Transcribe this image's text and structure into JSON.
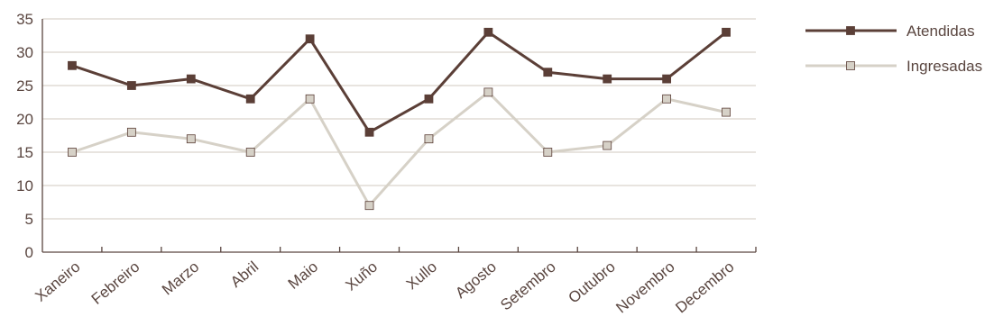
{
  "chart_data": {
    "type": "line",
    "categories": [
      "Xaneiro",
      "Febreiro",
      "Marzo",
      "Abril",
      "Maio",
      "Xuño",
      "Xullo",
      "Agosto",
      "Setembro",
      "Outubro",
      "Novembro",
      "Decembro"
    ],
    "series": [
      {
        "name": "Atendidas",
        "values": [
          28,
          25,
          26,
          23,
          32,
          18,
          23,
          33,
          27,
          26,
          26,
          33
        ],
        "color": "#5b3f37",
        "marker_fill": "#5b3f37"
      },
      {
        "name": "Ingresadas",
        "values": [
          15,
          18,
          17,
          15,
          23,
          7,
          17,
          24,
          15,
          16,
          23,
          21
        ],
        "color": "#d6d1c7",
        "marker_fill": "#d6d1c7"
      }
    ],
    "ylim": [
      0,
      35
    ],
    "yticks": [
      "0",
      "5",
      "10",
      "15",
      "20",
      "25",
      "30",
      "35"
    ],
    "grid": true,
    "legend_position": "right",
    "axis_color": "#5a4640",
    "grid_color": "#d9d4cc"
  }
}
